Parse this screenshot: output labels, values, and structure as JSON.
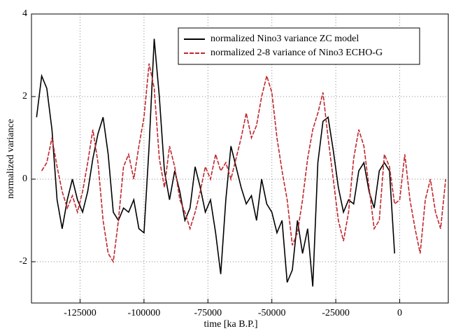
{
  "chart_data": {
    "type": "line",
    "xlabel": "time [ka B.P.]",
    "ylabel": "normalized variance",
    "xlim": [
      -144000,
      19000
    ],
    "ylim": [
      -3,
      4
    ],
    "xticks": [
      -125000,
      -100000,
      -75000,
      -50000,
      -25000,
      0
    ],
    "yticks": [
      -2,
      0,
      2,
      4
    ],
    "grid": true,
    "legend": "upper right",
    "x": [
      -142000,
      -140000,
      -138000,
      -136000,
      -134000,
      -132000,
      -130000,
      -128000,
      -126000,
      -124000,
      -122000,
      -120000,
      -118000,
      -116000,
      -114000,
      -112000,
      -110000,
      -108000,
      -106000,
      -104000,
      -102000,
      -100000,
      -98000,
      -96000,
      -94000,
      -92000,
      -90000,
      -88000,
      -86000,
      -84000,
      -82000,
      -80000,
      -78000,
      -76000,
      -74000,
      -72000,
      -70000,
      -68000,
      -66000,
      -64000,
      -62000,
      -60000,
      -58000,
      -56000,
      -54000,
      -52000,
      -50000,
      -48000,
      -46000,
      -44000,
      -42000,
      -40000,
      -38000,
      -36000,
      -34000,
      -32000,
      -30000,
      -28000,
      -26000,
      -24000,
      -22000,
      -20000,
      -18000,
      -16000,
      -14000,
      -12000,
      -10000,
      -8000,
      -6000,
      -4000,
      -2000,
      0,
      2000,
      4000,
      6000,
      8000,
      10000,
      12000,
      14000,
      16000,
      18000
    ],
    "series": [
      {
        "name": "normalized Nino3 variance ZC model",
        "color": "#000000",
        "dash": false,
        "values": [
          1.5,
          2.5,
          2.2,
          1.2,
          -0.5,
          -1.2,
          -0.5,
          0,
          -0.5,
          -0.8,
          -0.3,
          0.5,
          1.1,
          1.5,
          0.6,
          -0.8,
          -1.0,
          -0.7,
          -0.8,
          -0.5,
          -1.2,
          -1.3,
          0.8,
          3.4,
          2.0,
          0.2,
          -0.5,
          0.2,
          -0.3,
          -1.0,
          -0.7,
          0.3,
          -0.2,
          -0.8,
          -0.5,
          -1.3,
          -2.3,
          -0.5,
          0.8,
          0.3,
          -0.2,
          -0.6,
          -0.4,
          -1.0,
          0.0,
          -0.6,
          -0.8,
          -1.3,
          -1.0,
          -2.5,
          -2.2,
          -1.0,
          -1.8,
          -1.2,
          -2.6,
          0.4,
          1.4,
          1.5,
          0.7,
          -0.2,
          -0.8,
          -0.5,
          -0.6,
          0.2,
          0.4,
          -0.3,
          -0.7,
          0.2,
          0.4,
          0.2,
          -1.8,
          null,
          null,
          null,
          null,
          null,
          null,
          null,
          null,
          null,
          null
        ]
      },
      {
        "name": "normalized 2-8 variance of Nino3 ECHO-G",
        "color": "#c0272d",
        "dash": true,
        "values": [
          null,
          0.2,
          0.4,
          1.0,
          0.3,
          -0.3,
          -0.7,
          -0.4,
          -0.8,
          -0.3,
          0.4,
          1.2,
          0.4,
          -1.0,
          -1.8,
          -2.0,
          -1.0,
          0.3,
          0.6,
          0.0,
          0.8,
          1.5,
          2.8,
          2.2,
          0.5,
          -0.2,
          0.8,
          0.3,
          -0.5,
          -0.8,
          -1.2,
          -0.8,
          -0.3,
          0.3,
          0.0,
          0.6,
          0.2,
          0.4,
          0.0,
          0.5,
          1.0,
          1.6,
          1.0,
          1.3,
          2.0,
          2.5,
          2.1,
          1.0,
          0.2,
          -0.5,
          -1.6,
          -1.3,
          -0.5,
          0.5,
          1.2,
          1.6,
          2.1,
          1.0,
          0.0,
          -1.0,
          -1.5,
          -0.8,
          0.5,
          1.2,
          0.8,
          -0.2,
          -1.2,
          -1.0,
          0.6,
          0.3,
          -0.6,
          -0.5,
          0.6,
          -0.5,
          -1.2,
          -1.8,
          -0.5,
          0.0,
          -0.8,
          -1.2,
          0.0
        ]
      }
    ]
  }
}
